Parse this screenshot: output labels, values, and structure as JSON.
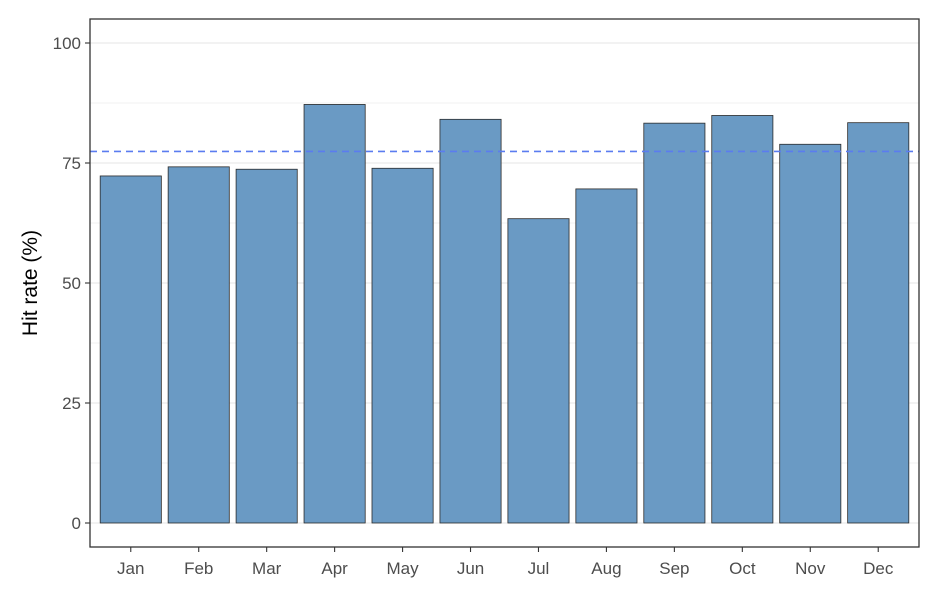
{
  "chart_data": {
    "type": "bar",
    "title": "",
    "xlabel": "",
    "ylabel": "Hit rate (%)",
    "categories": [
      "Jan",
      "Feb",
      "Mar",
      "Apr",
      "May",
      "Jun",
      "Jul",
      "Aug",
      "Sep",
      "Oct",
      "Nov",
      "Dec"
    ],
    "values": [
      72.3,
      74.2,
      73.7,
      87.2,
      73.9,
      84.1,
      63.4,
      69.6,
      83.3,
      84.9,
      78.9,
      83.4
    ],
    "ylim": [
      -5,
      105
    ],
    "yticks": [
      0,
      25,
      50,
      75,
      100
    ],
    "ytick_labels": [
      "0",
      "25",
      "50",
      "75",
      "100"
    ],
    "reference_line": {
      "value": 77.4,
      "style": "dashed",
      "color": "#5b7cf0"
    },
    "grid": true,
    "legend": "none",
    "bar_color": "#6a9ac4",
    "bar_edge_color": "#2b2b2b"
  }
}
